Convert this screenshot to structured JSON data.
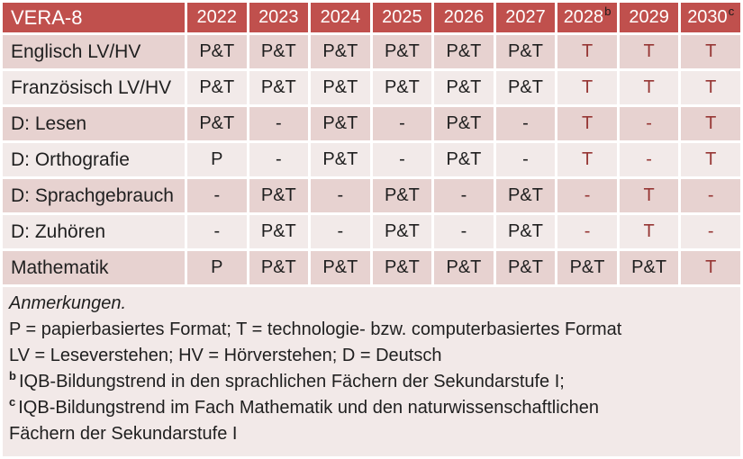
{
  "table": {
    "title": "VERA-8",
    "columns": [
      {
        "year": "2022"
      },
      {
        "year": "2023"
      },
      {
        "year": "2024"
      },
      {
        "year": "2025"
      },
      {
        "year": "2026"
      },
      {
        "year": "2027"
      },
      {
        "year": "2028",
        "sup": "b"
      },
      {
        "year": "2029"
      },
      {
        "year": "2030",
        "sup": "c"
      }
    ],
    "rows": [
      {
        "label": "Englisch LV/HV",
        "values": [
          "P&T",
          "P&T",
          "P&T",
          "P&T",
          "P&T",
          "P&T",
          "T",
          "T",
          "T"
        ],
        "red": [
          0,
          0,
          0,
          0,
          0,
          0,
          1,
          1,
          1
        ]
      },
      {
        "label": "Französisch LV/HV",
        "values": [
          "P&T",
          "P&T",
          "P&T",
          "P&T",
          "P&T",
          "P&T",
          "T",
          "T",
          "T"
        ],
        "red": [
          0,
          0,
          0,
          0,
          0,
          0,
          1,
          1,
          1
        ]
      },
      {
        "label": "D: Lesen",
        "values": [
          "P&T",
          "-",
          "P&T",
          "-",
          "P&T",
          "-",
          "T",
          "-",
          "T"
        ],
        "red": [
          0,
          0,
          0,
          0,
          0,
          0,
          1,
          1,
          1
        ]
      },
      {
        "label": "D: Orthografie",
        "values": [
          "P",
          "-",
          "P&T",
          "-",
          "P&T",
          "-",
          "T",
          "-",
          "T"
        ],
        "red": [
          0,
          0,
          0,
          0,
          0,
          0,
          1,
          1,
          1
        ]
      },
      {
        "label": "D: Sprachgebrauch",
        "values": [
          "-",
          "P&T",
          "-",
          "P&T",
          "-",
          "P&T",
          "-",
          "T",
          "-"
        ],
        "red": [
          0,
          0,
          0,
          0,
          0,
          0,
          1,
          1,
          1
        ]
      },
      {
        "label": "D: Zuhören",
        "values": [
          "-",
          "P&T",
          "-",
          "P&T",
          "-",
          "P&T",
          "-",
          "T",
          "-"
        ],
        "red": [
          0,
          0,
          0,
          0,
          0,
          0,
          1,
          1,
          1
        ]
      },
      {
        "label": "Mathematik",
        "values": [
          "P",
          "P&T",
          "P&T",
          "P&T",
          "P&T",
          "P&T",
          "P&T",
          "P&T",
          "T"
        ],
        "red": [
          0,
          0,
          0,
          0,
          0,
          0,
          0,
          0,
          1
        ]
      }
    ],
    "notes": {
      "lines": [
        {
          "text": "Anmerkungen.",
          "italic": true
        },
        {
          "text": "P = papierbasiertes Format; T = technologie- bzw. computerbasiertes Format"
        },
        {
          "text": "LV = Leseverstehen; HV = Hörverstehen; D = Deutsch"
        },
        {
          "marker": "b",
          "text": "IQB-Bildungstrend in den sprachlichen Fächern der Sekundarstufe I;"
        },
        {
          "marker": "c",
          "text": "IQB-Bildungstrend im Fach Mathematik und den naturwissenschaftlichen"
        },
        {
          "text": "Fächern der Sekundarstufe I"
        }
      ]
    }
  },
  "colors": {
    "header_bg": "#c0504d",
    "header_text": "#ffffff",
    "row_band_dark": "#e7d2d0",
    "row_band_light": "#f2eae9",
    "notes_bg": "#f2e9e8",
    "accent_red_text": "#963634",
    "body_text": "#1f1f1f"
  }
}
